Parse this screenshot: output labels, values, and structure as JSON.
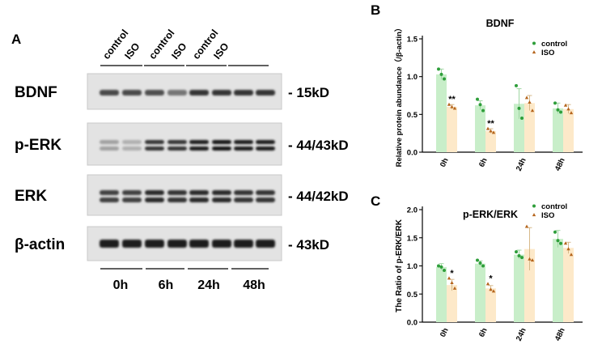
{
  "panels": {
    "a": {
      "letter": "A",
      "conditions": [
        "control",
        "ISO",
        "control",
        "ISO",
        "control",
        "ISO"
      ],
      "timepoints": [
        "0h",
        "6h",
        "24h",
        "48h"
      ],
      "blots": [
        {
          "protein": "BDNF",
          "size": "- 15kD"
        },
        {
          "protein": "p-ERK",
          "size": "- 44/43kD"
        },
        {
          "protein": "ERK",
          "size": "- 44/42kD"
        },
        {
          "protein": "β-actin",
          "size": "- 43kD"
        }
      ]
    },
    "b": {
      "letter": "B"
    },
    "c": {
      "letter": "C"
    }
  },
  "colors": {
    "control_bar": "#c8eec9",
    "control_marker": "#2e9e3a",
    "iso_bar": "#fde9c9",
    "iso_marker": "#b5651d",
    "error_bar": "#d7b98a"
  },
  "chart_data": [
    {
      "id": "b",
      "type": "bar",
      "title": "BDNF",
      "ylabel": "Relative protein abundance（/β-actin）",
      "xlabel": "",
      "categories": [
        "0h",
        "6h",
        "24h",
        "48h"
      ],
      "ylim": [
        0.0,
        1.5
      ],
      "yticks": [
        "0.0",
        "0.5",
        "1.0",
        "1.5"
      ],
      "legend_position": "top-right",
      "series": [
        {
          "name": "control",
          "values": [
            1.03,
            0.62,
            0.64,
            0.58
          ],
          "errors": [
            0.07,
            0.06,
            0.2,
            0.07
          ],
          "points": [
            [
              1.1,
              1.03,
              0.97
            ],
            [
              0.7,
              0.63,
              0.55
            ],
            [
              0.88,
              0.58,
              0.45
            ],
            [
              0.65,
              0.56,
              0.53
            ]
          ]
        },
        {
          "name": "ISO",
          "values": [
            0.6,
            0.28,
            0.65,
            0.57
          ],
          "errors": [
            0.03,
            0.03,
            0.1,
            0.06
          ],
          "points": [
            [
              0.63,
              0.6,
              0.58
            ],
            [
              0.31,
              0.28,
              0.26
            ],
            [
              0.72,
              0.66,
              0.55
            ],
            [
              0.62,
              0.57,
              0.52
            ]
          ]
        }
      ],
      "annotations": [
        {
          "category": "0h",
          "series": "ISO",
          "text": "**"
        },
        {
          "category": "6h",
          "series": "ISO",
          "text": "**"
        }
      ]
    },
    {
      "id": "c",
      "type": "bar",
      "title": "p-ERK/ERK",
      "ylabel": "The Ratio of p-ERK/ERK",
      "xlabel": "",
      "categories": [
        "0h",
        "6h",
        "24h",
        "48h"
      ],
      "ylim": [
        0.0,
        2.0
      ],
      "yticks": [
        "0.0",
        "0.5",
        "1.0",
        "1.5",
        "2.0"
      ],
      "legend_position": "top-right",
      "series": [
        {
          "name": "control",
          "values": [
            0.98,
            1.04,
            1.2,
            1.48
          ],
          "errors": [
            0.06,
            0.05,
            0.08,
            0.15
          ],
          "points": [
            [
              1.0,
              0.98,
              0.92
            ],
            [
              1.1,
              1.05,
              1.0
            ],
            [
              1.25,
              1.18,
              1.15
            ],
            [
              1.6,
              1.45,
              1.4
            ]
          ]
        },
        {
          "name": "ISO",
          "values": [
            0.66,
            0.6,
            1.3,
            1.32
          ],
          "errors": [
            0.1,
            0.05,
            0.38,
            0.1
          ],
          "points": [
            [
              0.78,
              0.7,
              0.6
            ],
            [
              0.68,
              0.58,
              0.55
            ],
            [
              1.7,
              1.12,
              1.1
            ],
            [
              1.4,
              1.3,
              1.2
            ]
          ]
        }
      ],
      "annotations": [
        {
          "category": "0h",
          "series": "ISO",
          "text": "*"
        },
        {
          "category": "6h",
          "series": "ISO",
          "text": "*"
        }
      ]
    }
  ]
}
